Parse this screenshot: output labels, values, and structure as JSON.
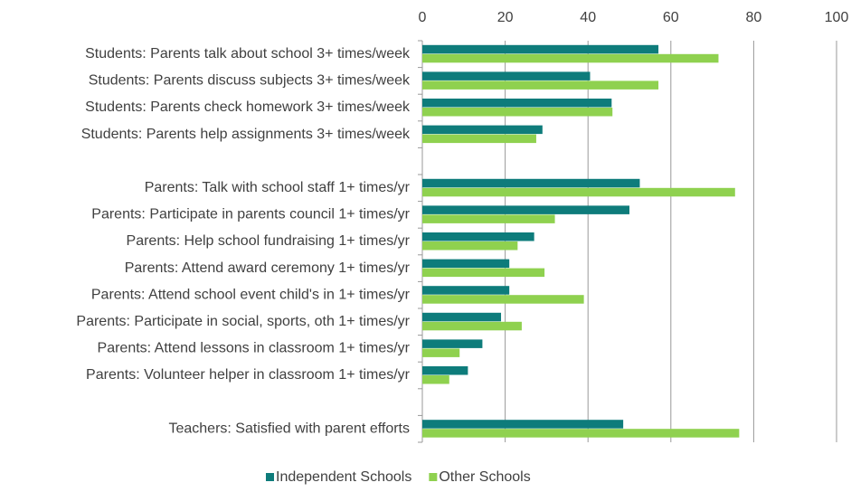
{
  "chart_data": {
    "type": "hbar",
    "categories": [
      "Students: Parents talk about school 3+ times/week",
      "Students: Parents discuss subjects 3+ times/week",
      "Students: Parents check homework 3+ times/week",
      "Students: Parents help assignments 3+ times/week",
      null,
      "Parents: Talk with school staff 1+ times/yr",
      "Parents: Participate in parents council 1+ times/yr",
      "Parents: Help school fundraising 1+ times/yr",
      "Parents: Attend award ceremony 1+ times/yr",
      "Parents: Attend school event child's in 1+ times/yr",
      "Parents: Participate in social, sports, oth 1+ times/yr",
      "Parents: Attend lessons in classroom 1+ times/yr",
      "Parents: Volunteer helper in classroom 1+ times/yr",
      null,
      "Teachers: Satisfied with parent efforts"
    ],
    "series": [
      {
        "name": "Independent Schools",
        "color": "#0e7c7b",
        "values": [
          57,
          40.5,
          45.7,
          29,
          null,
          52.5,
          50,
          27,
          21,
          21,
          19,
          14.5,
          11,
          null,
          48.5
        ]
      },
      {
        "name": "Other Schools",
        "color": "#8fd14f",
        "values": [
          71.5,
          57,
          45.9,
          27.5,
          null,
          75.5,
          32,
          23,
          29.5,
          39,
          24,
          9,
          6.5,
          null,
          76.5
        ]
      }
    ],
    "xlim": [
      0,
      100
    ],
    "xticks": [
      0,
      20,
      40,
      60,
      80,
      100
    ],
    "grid": true,
    "legend": "bottom"
  }
}
